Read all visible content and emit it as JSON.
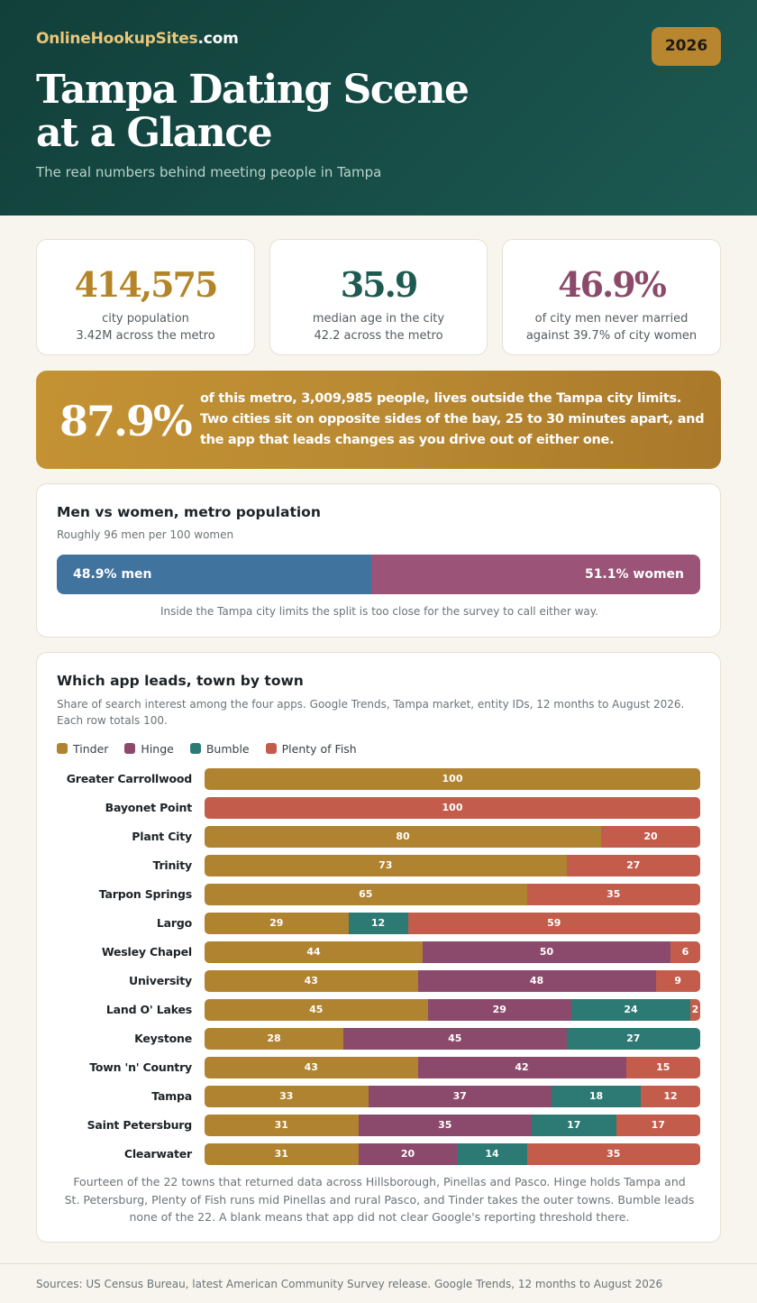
{
  "header": {
    "brand_primary": "OnlineHookupSites",
    "brand_suffix": ".com",
    "year_badge": "2026",
    "title": "Tampa Dating Scene at a Glance",
    "subtitle": "The real numbers behind meeting people in Tampa"
  },
  "stats": [
    {
      "value": "414,575",
      "label": "city population",
      "detail": "3.42M across the metro",
      "color": "#b48428"
    },
    {
      "value": "35.9",
      "label": "median age in the city",
      "detail": "42.2 across the metro",
      "color": "#1d5a52"
    },
    {
      "value": "46.9%",
      "label": "of city men never married",
      "detail": "against 39.7% of city women",
      "color": "#8c4a6a"
    }
  ],
  "banner": {
    "value": "87.9%",
    "text": "of this metro, 3,009,985 people, lives outside the Tampa city limits. Two cities sit on opposite sides of the bay, 25 to 30 minutes apart, and the app that leads changes as you drive out of either one."
  },
  "gender": {
    "title": "Men vs women, metro population",
    "subtitle": "Roughly 96 men per 100 women",
    "men_pct": 48.9,
    "women_pct": 51.1,
    "men_label": "48.9% men",
    "women_label": "51.1% women",
    "note": "Inside the Tampa city limits the split is too close for the survey to call either way."
  },
  "apps": {
    "title": "Which app leads, town by town",
    "subtitle": "Share of search interest among the four apps. Google Trends, Tampa market, entity IDs, 12 months to August 2026. Each row totals 100.",
    "note": "Fourteen of the 22 towns that returned data across Hillsborough, Pinellas and Pasco. Hinge holds Tampa and St. Petersburg, Plenty of Fish runs mid Pinellas and rural Pasco, and Tinder takes the outer towns. Bumble leads none of the 22. A blank means that app did not clear Google's reporting threshold there."
  },
  "chart_data": {
    "type": "bar",
    "orientation": "horizontal",
    "stacked": true,
    "title": "Which app leads, town by town",
    "legend_position": "top-left",
    "categories": [
      "Greater Carrollwood",
      "Bayonet Point",
      "Plant City",
      "Trinity",
      "Tarpon Springs",
      "Largo",
      "Wesley Chapel",
      "University",
      "Land O' Lakes",
      "Keystone",
      "Town 'n' Country",
      "Tampa",
      "Saint Petersburg",
      "Clearwater"
    ],
    "series": [
      {
        "name": "Tinder",
        "color": "#b08330",
        "values": [
          100,
          null,
          80,
          73,
          65,
          29,
          44,
          43,
          45,
          28,
          43,
          33,
          31,
          31
        ]
      },
      {
        "name": "Hinge",
        "color": "#8b4a6b",
        "values": [
          null,
          null,
          null,
          null,
          null,
          null,
          50,
          48,
          29,
          45,
          42,
          37,
          35,
          20
        ]
      },
      {
        "name": "Bumble",
        "color": "#2c7a73",
        "values": [
          null,
          null,
          null,
          null,
          null,
          12,
          null,
          null,
          24,
          27,
          null,
          18,
          17,
          14
        ]
      },
      {
        "name": "Plenty of Fish",
        "color": "#c35c4b",
        "values": [
          null,
          100,
          20,
          27,
          35,
          59,
          6,
          9,
          2,
          null,
          15,
          12,
          17,
          35
        ]
      }
    ]
  },
  "footer": {
    "sources": "Sources: US Census Bureau, latest American Community Survey release. Google Trends, 12 months to August 2026"
  }
}
